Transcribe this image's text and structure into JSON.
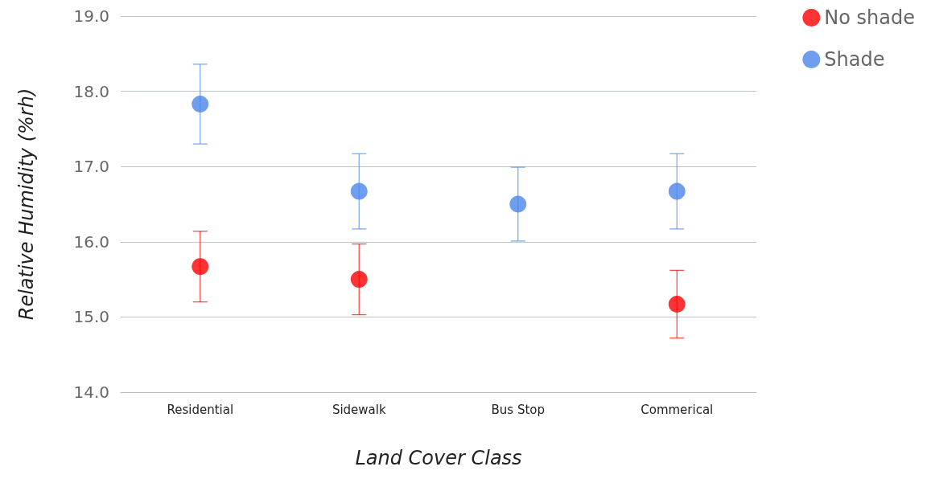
{
  "chart_data": {
    "type": "scatter",
    "xlabel": "Land Cover Class",
    "ylabel": "Relative Humidity (%rh)",
    "categories": [
      "Residential",
      "Sidewalk",
      "Bus Stop",
      "Commerical"
    ],
    "series": [
      {
        "name": "No shade",
        "color": "#ff0000",
        "values": [
          15.67,
          15.5,
          null,
          15.17
        ],
        "errors": [
          0.47,
          0.47,
          null,
          0.45
        ]
      },
      {
        "name": "Shade",
        "color": "#4a86e8",
        "values": [
          17.83,
          16.67,
          16.5,
          16.67
        ],
        "errors": [
          0.53,
          0.5,
          0.49,
          0.5
        ]
      }
    ],
    "ylim": [
      14,
      19
    ],
    "yticks": [
      {
        "value": 14,
        "label": "14.0"
      },
      {
        "value": 15,
        "label": "15.0"
      },
      {
        "value": 16,
        "label": "16.0"
      },
      {
        "value": 17,
        "label": "17.0"
      },
      {
        "value": 18,
        "label": "18.0"
      },
      {
        "value": 19,
        "label": "19.0"
      }
    ],
    "grid": "y",
    "legend": "top right",
    "marker": "circle"
  }
}
